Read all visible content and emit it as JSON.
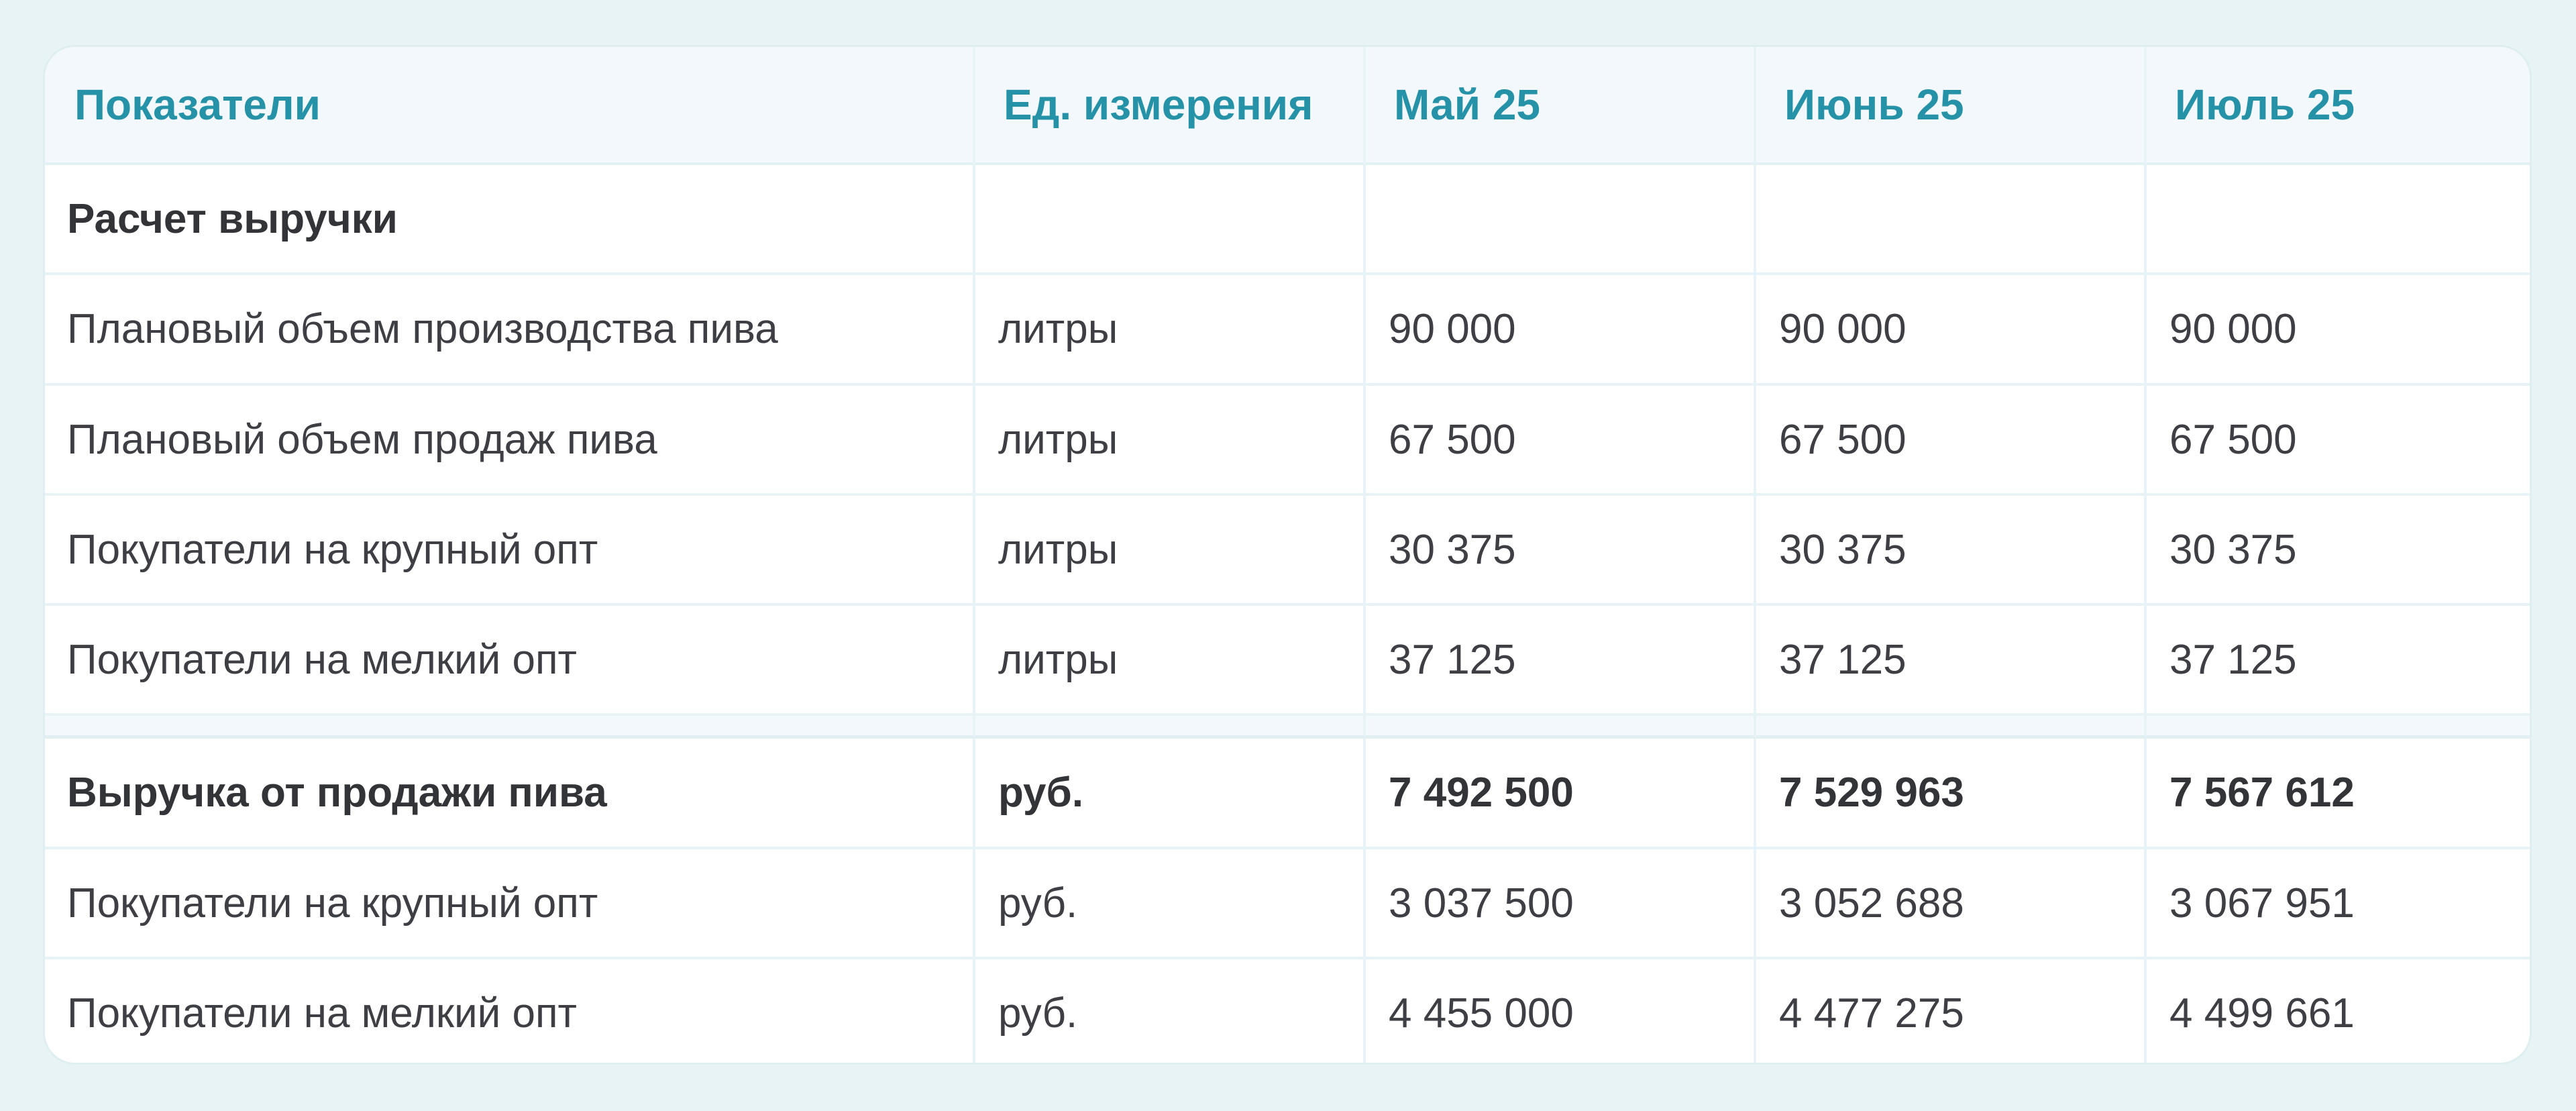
{
  "table": {
    "columns": [
      "Показатели",
      "Ед. измерения",
      "Май 25",
      "Июнь 25",
      "Июль 25"
    ],
    "rows": [
      {
        "type": "section",
        "cells": [
          "Расчет выручки",
          "",
          "",
          "",
          ""
        ]
      },
      {
        "type": "data",
        "cells": [
          "Плановый объем производства пива",
          "литры",
          "90 000",
          "90 000",
          "90 000"
        ]
      },
      {
        "type": "data",
        "cells": [
          "Плановый объем продаж пива",
          "литры",
          "67 500",
          "67 500",
          "67 500"
        ]
      },
      {
        "type": "data",
        "cells": [
          "Покупатели на крупный опт",
          "литры",
          "30 375",
          "30 375",
          "30 375"
        ]
      },
      {
        "type": "data",
        "cells": [
          "Покупатели на мелкий опт",
          "литры",
          "37 125",
          "37 125",
          "37 125"
        ]
      },
      {
        "type": "spacer",
        "cells": [
          "",
          "",
          "",
          "",
          ""
        ]
      },
      {
        "type": "total",
        "cells": [
          "Выручка от продажи пива",
          "руб.",
          "7 492 500",
          "7 529 963",
          "7 567 612"
        ]
      },
      {
        "type": "data",
        "cells": [
          "Покупатели на крупный опт",
          "руб.",
          "3 037 500",
          "3 052 688",
          "3 067 951"
        ]
      },
      {
        "type": "data",
        "cells": [
          "Покупатели на мелкий опт",
          "руб.",
          "4 455 000",
          "4 477 275",
          "4 499 661"
        ]
      }
    ]
  },
  "colors": {
    "header_text": "#2592a8",
    "header_bg": "#f2f8fb",
    "page_bg": "#e8f3f5",
    "border": "#e7f3f6",
    "body_text": "#3e3f44"
  }
}
